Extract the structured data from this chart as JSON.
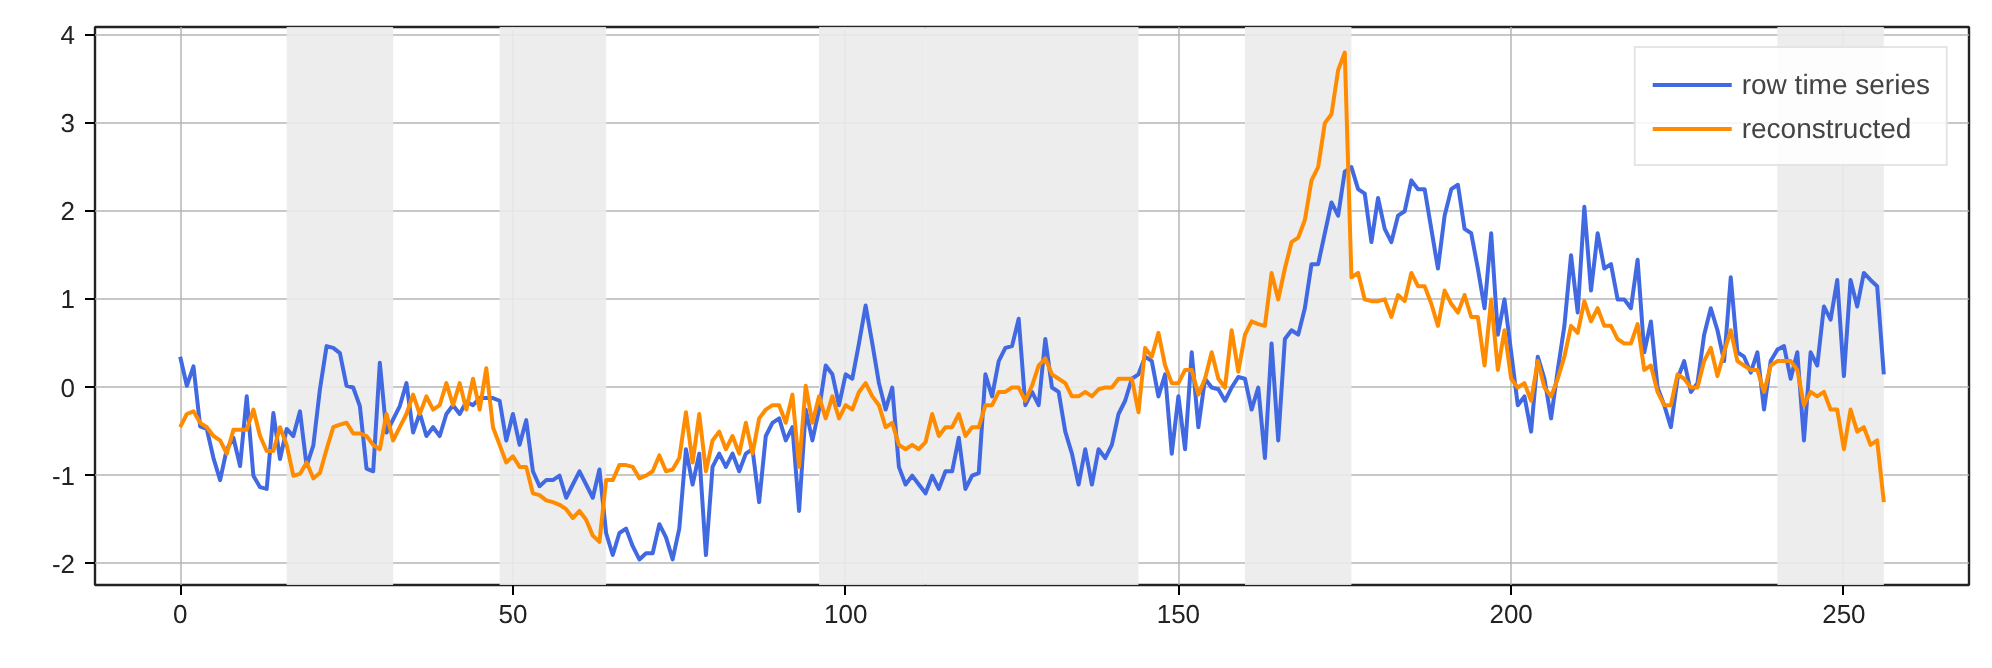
{
  "chart_data": {
    "type": "line",
    "x": [
      0,
      1,
      2,
      3,
      4,
      5,
      6,
      7,
      8,
      9,
      10,
      11,
      12,
      13,
      14,
      15,
      16,
      17,
      18,
      19,
      20,
      21,
      22,
      23,
      24,
      25,
      26,
      27,
      28,
      29,
      30,
      31,
      32,
      33,
      34,
      35,
      36,
      37,
      38,
      39,
      40,
      41,
      42,
      43,
      44,
      45,
      46,
      47,
      48,
      49,
      50,
      51,
      52,
      53,
      54,
      55,
      56,
      57,
      58,
      59,
      60,
      61,
      62,
      63,
      64,
      65,
      66,
      67,
      68,
      69,
      70,
      71,
      72,
      73,
      74,
      75,
      76,
      77,
      78,
      79,
      80,
      81,
      82,
      83,
      84,
      85,
      86,
      87,
      88,
      89,
      90,
      91,
      92,
      93,
      94,
      95,
      96,
      97,
      98,
      99,
      100,
      101,
      102,
      103,
      104,
      105,
      106,
      107,
      108,
      109,
      110,
      111,
      112,
      113,
      114,
      115,
      116,
      117,
      118,
      119,
      120,
      121,
      122,
      123,
      124,
      125,
      126,
      127,
      128,
      129,
      130,
      131,
      132,
      133,
      134,
      135,
      136,
      137,
      138,
      139,
      140,
      141,
      142,
      143,
      144,
      145,
      146,
      147,
      148,
      149,
      150,
      151,
      152,
      153,
      154,
      155,
      156,
      157,
      158,
      159,
      160,
      161,
      162,
      163,
      164,
      165,
      166,
      167,
      168,
      169,
      170,
      171,
      172,
      173,
      174,
      175,
      176,
      177,
      178,
      179,
      180,
      181,
      182,
      183,
      184,
      185,
      186,
      187,
      188,
      189,
      190,
      191,
      192,
      193,
      194,
      195,
      196,
      197,
      198,
      199,
      200,
      201,
      202,
      203,
      204,
      205,
      206,
      207,
      208,
      209,
      210,
      211,
      212,
      213,
      214,
      215,
      216,
      217,
      218,
      219,
      220,
      221,
      222,
      223,
      224,
      225,
      226,
      227,
      228,
      229,
      230,
      231,
      232,
      233,
      234,
      235,
      236,
      237,
      238,
      239,
      240,
      241,
      242,
      243,
      244,
      245,
      246,
      247,
      248,
      249,
      250,
      251,
      252,
      253,
      254,
      255,
      256
    ],
    "series": [
      {
        "name": "row time series",
        "color": "#4169e1",
        "values": [
          0.35,
          0.02,
          0.24,
          -0.44,
          -0.47,
          -0.8,
          -1.05,
          -0.7,
          -0.57,
          -0.89,
          -0.1,
          -1.0,
          -1.13,
          -1.15,
          -0.29,
          -0.81,
          -0.47,
          -0.55,
          -0.27,
          -0.89,
          -0.66,
          -0.02,
          0.47,
          0.45,
          0.39,
          0.02,
          0,
          -0.21,
          -0.92,
          -0.95,
          0.28,
          -0.51,
          -0.36,
          -0.21,
          0.05,
          -0.51,
          -0.29,
          -0.55,
          -0.45,
          -0.55,
          -0.3,
          -0.2,
          -0.3,
          -0.16,
          -0.2,
          -0.12,
          -0.12,
          -0.12,
          -0.15,
          -0.6,
          -0.3,
          -0.65,
          -0.37,
          -0.95,
          -1.12,
          -1.05,
          -1.05,
          -1.0,
          -1.25,
          -1.1,
          -0.95,
          -1.1,
          -1.25,
          -0.93,
          -1.65,
          -1.9,
          -1.65,
          -1.6,
          -1.8,
          -1.95,
          -1.88,
          -1.88,
          -1.55,
          -1.7,
          -1.95,
          -1.6,
          -0.7,
          -1.1,
          -0.75,
          -1.9,
          -0.9,
          -0.75,
          -0.9,
          -0.75,
          -0.95,
          -0.75,
          -0.7,
          -1.3,
          -0.55,
          -0.4,
          -0.35,
          -0.6,
          -0.45,
          -1.4,
          -0.25,
          -0.6,
          -0.25,
          0.25,
          0.15,
          -0.2,
          0.15,
          0.1,
          0.5,
          0.93,
          0.5,
          0.05,
          -0.25,
          0,
          -0.9,
          -1.1,
          -1.0,
          -1.1,
          -1.2,
          -1.0,
          -1.15,
          -0.95,
          -0.95,
          -0.57,
          -1.15,
          -1.0,
          -0.97,
          0.15,
          -0.1,
          0.3,
          0.45,
          0.47,
          0.78,
          -0.2,
          -0.05,
          -0.2,
          0.55,
          0.0,
          -0.05,
          -0.5,
          -0.75,
          -1.1,
          -0.7,
          -1.1,
          -0.7,
          -0.8,
          -0.65,
          -0.3,
          -0.15,
          0.1,
          0.15,
          0.35,
          0.3,
          -0.1,
          0.15,
          -0.75,
          -0.1,
          -0.7,
          0.4,
          -0.45,
          0.1,
          0,
          -0.02,
          -0.15,
          0,
          0.12,
          0.1,
          -0.25,
          0,
          -0.8,
          0.5,
          -0.6,
          0.55,
          0.65,
          0.6,
          0.9,
          1.4,
          1.4,
          1.75,
          2.1,
          1.95,
          2.45,
          2.5,
          2.25,
          2.2,
          1.65,
          2.15,
          1.8,
          1.65,
          1.95,
          2.0,
          2.35,
          2.25,
          2.25,
          1.8,
          1.35,
          1.95,
          2.25,
          2.3,
          1.8,
          1.75,
          1.35,
          0.9,
          1.75,
          0.6,
          1.0,
          0.4,
          -0.2,
          -0.1,
          -0.5,
          0.35,
          0.1,
          -0.35,
          0.2,
          0.7,
          1.5,
          0.85,
          2.05,
          1.1,
          1.75,
          1.35,
          1.4,
          1.0,
          1.0,
          0.9,
          1.45,
          0.4,
          0.75,
          0.0,
          -0.2,
          -0.45,
          0.1,
          0.3,
          -0.05,
          0.05,
          0.6,
          0.9,
          0.65,
          0.3,
          1.25,
          0.4,
          0.35,
          0.17,
          0.4,
          -0.25,
          0.3,
          0.43,
          0.47,
          0.1,
          0.4,
          -0.6,
          0.4,
          0.25,
          0.92,
          0.77,
          1.22,
          0.13,
          1.22,
          0.92,
          1.3,
          1.22,
          1.15,
          0.15
        ]
      },
      {
        "name": "reconstructed",
        "color": "#ff8c00",
        "values": [
          -0.45,
          -0.3,
          -0.27,
          -0.4,
          -0.45,
          -0.55,
          -0.6,
          -0.75,
          -0.48,
          -0.48,
          -0.48,
          -0.25,
          -0.55,
          -0.72,
          -0.72,
          -0.45,
          -0.65,
          -1.0,
          -0.98,
          -0.85,
          -1.03,
          -0.97,
          -0.7,
          -0.45,
          -0.42,
          -0.4,
          -0.52,
          -0.52,
          -0.55,
          -0.65,
          -0.7,
          -0.3,
          -0.6,
          -0.45,
          -0.3,
          -0.08,
          -0.3,
          -0.1,
          -0.25,
          -0.2,
          0.05,
          -0.2,
          0.05,
          -0.25,
          0.1,
          -0.25,
          0.22,
          -0.45,
          -0.65,
          -0.85,
          -0.78,
          -0.9,
          -0.9,
          -1.2,
          -1.22,
          -1.28,
          -1.3,
          -1.33,
          -1.38,
          -1.48,
          -1.4,
          -1.5,
          -1.68,
          -1.75,
          -1.05,
          -1.05,
          -0.88,
          -0.88,
          -0.9,
          -1.03,
          -1.0,
          -0.95,
          -0.77,
          -0.95,
          -0.93,
          -0.8,
          -0.28,
          -0.85,
          -0.3,
          -0.95,
          -0.6,
          -0.5,
          -0.7,
          -0.55,
          -0.75,
          -0.4,
          -0.75,
          -0.35,
          -0.25,
          -0.2,
          -0.2,
          -0.4,
          -0.08,
          -0.9,
          0.02,
          -0.4,
          -0.1,
          -0.35,
          -0.1,
          -0.35,
          -0.2,
          -0.25,
          -0.05,
          0.05,
          -0.1,
          -0.2,
          -0.45,
          -0.4,
          -0.65,
          -0.7,
          -0.65,
          -0.7,
          -0.62,
          -0.3,
          -0.55,
          -0.45,
          -0.45,
          -0.3,
          -0.55,
          -0.45,
          -0.45,
          -0.2,
          -0.2,
          -0.05,
          -0.05,
          0.0,
          0.0,
          -0.15,
          0.02,
          0.25,
          0.33,
          0.15,
          0.1,
          0.05,
          -0.1,
          -0.1,
          -0.05,
          -0.1,
          -0.02,
          0.0,
          0.0,
          0.1,
          0.1,
          0.1,
          -0.28,
          0.45,
          0.35,
          0.62,
          0.25,
          0.05,
          0.05,
          0.2,
          0.2,
          -0.08,
          0.1,
          0.4,
          0.1,
          0.0,
          0.65,
          0.18,
          0.6,
          0.75,
          0.72,
          0.7,
          1.3,
          1.0,
          1.35,
          1.65,
          1.7,
          1.9,
          2.35,
          2.5,
          3.0,
          3.1,
          3.6,
          3.8,
          1.25,
          1.3,
          1.0,
          0.98,
          0.98,
          1.0,
          0.8,
          1.05,
          0.98,
          1.3,
          1.15,
          1.15,
          0.95,
          0.7,
          1.1,
          0.95,
          0.85,
          1.05,
          0.8,
          0.8,
          0.25,
          1.0,
          0.2,
          0.65,
          0.1,
          0.0,
          0.05,
          -0.15,
          0.3,
          0.0,
          -0.1,
          0.1,
          0.35,
          0.7,
          0.62,
          0.98,
          0.75,
          0.9,
          0.7,
          0.7,
          0.55,
          0.5,
          0.5,
          0.72,
          0.2,
          0.25,
          -0.05,
          -0.2,
          -0.2,
          0.15,
          0.1,
          0.0,
          0.0,
          0.3,
          0.45,
          0.13,
          0.4,
          0.65,
          0.3,
          0.25,
          0.2,
          0.2,
          -0.05,
          0.25,
          0.3,
          0.3,
          0.3,
          0.2,
          -0.2,
          -0.05,
          -0.1,
          -0.05,
          -0.25,
          -0.25,
          -0.7,
          -0.25,
          -0.5,
          -0.45,
          -0.65,
          -0.6,
          -1.3
        ]
      }
    ],
    "xlim": [
      -12.8,
      268.8
    ],
    "ylim": [
      -2.24,
      4.09
    ],
    "xticks": [
      0,
      50,
      100,
      150,
      200,
      250
    ],
    "yticks": [
      -2,
      -1,
      0,
      1,
      2,
      3,
      4
    ],
    "bands": [
      {
        "axis": "x",
        "from": 16,
        "to": 32,
        "color": "#ebebeb"
      },
      {
        "axis": "x",
        "from": 48,
        "to": 64,
        "color": "#ebebeb"
      },
      {
        "axis": "x",
        "from": 96,
        "to": 112,
        "color": "#ebebeb"
      },
      {
        "axis": "x",
        "from": 112,
        "to": 128,
        "color": "#ebebeb"
      },
      {
        "axis": "x",
        "from": 128,
        "to": 144,
        "color": "#ebebeb"
      },
      {
        "axis": "x",
        "from": 160,
        "to": 176,
        "color": "#ebebeb"
      },
      {
        "axis": "x",
        "from": 240,
        "to": 256,
        "color": "#ebebeb"
      }
    ],
    "grid": true,
    "legend": "top right",
    "marker": "none",
    "line_style": "solid"
  }
}
